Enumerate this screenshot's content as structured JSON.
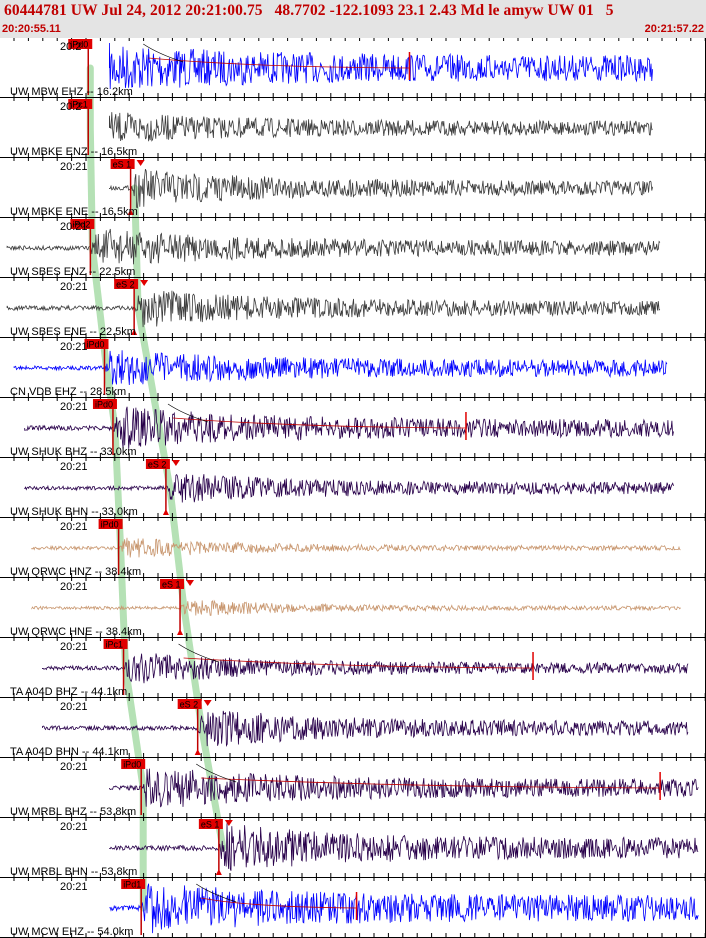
{
  "header": {
    "title": "60444781 UW Jul 24, 2012 20:21:00.75   48.7702 -122.1093 23.1 2.43 Md le amyw UW 01   5",
    "start_time": "20:20:55.11",
    "end_time": "20:21:57.22"
  },
  "panels": [
    {
      "label": "UW MBW EHZ -- 16.2km",
      "tick": "20:2",
      "color": "#0000ff",
      "start": 0.155,
      "end": 0.925,
      "amp": 26,
      "phase": "iPd0",
      "phase_x": 0.125,
      "mark_x": 0.58,
      "decay": 0.45
    },
    {
      "label": "UW MBKE ENZ -- 16.5km",
      "tick": "20:2",
      "color": "#3c3c3c",
      "start": 0.155,
      "end": 0.925,
      "amp": 17,
      "phase": "iPc1",
      "phase_x": 0.125,
      "decay": 0.35
    },
    {
      "label": "UW MBKE ENE -- 16.5km",
      "tick": "20:21",
      "color": "#3c3c3c",
      "start": 0.155,
      "end": 0.925,
      "amp": 20,
      "phase": "eS 1",
      "phase_x": 0.185,
      "decay": 0.3
    },
    {
      "label": "UW SBES ENZ -- 22.5km",
      "tick": "20:21",
      "color": "#3c3c3c",
      "start": 0.01,
      "end": 0.935,
      "amp": 20,
      "phase": "iPd2",
      "phase_x": 0.128,
      "decay": 0.3
    },
    {
      "label": "UW SBES ENE -- 22.5km",
      "tick": "20:21",
      "color": "#3c3c3c",
      "start": 0.01,
      "end": 0.935,
      "amp": 20,
      "phase": "eS 2",
      "phase_x": 0.19,
      "decay": 0.3
    },
    {
      "label": "CN VDB EHZ -- 28.5km",
      "tick": "20:21",
      "color": "#0000ff",
      "start": 0.02,
      "end": 0.945,
      "amp": 18,
      "phase": "iPd0",
      "phase_x": 0.148,
      "decay": 0.4
    },
    {
      "label": "UW SHUK BHZ -- 33.0km",
      "tick": "20:21",
      "color": "#28004a",
      "start": 0.035,
      "end": 0.955,
      "amp": 22,
      "phase": "iPd0",
      "phase_x": 0.16,
      "mark_x": 0.66,
      "decay": 0.35
    },
    {
      "label": "UW SHUK BHN -- 33.0km",
      "tick": "20:21",
      "color": "#28004a",
      "start": 0.035,
      "end": 0.955,
      "amp": 16,
      "phase": "eS 2",
      "phase_x": 0.235,
      "decay": 0.3
    },
    {
      "label": "UW QRWC HNZ -- 38.4km",
      "tick": "20:21",
      "color": "#c8966e",
      "start": 0.045,
      "end": 0.965,
      "amp": 10,
      "phase": "iPd0",
      "phase_x": 0.168,
      "decay": 0.1
    },
    {
      "label": "UW QRWC HNE -- 38.4km",
      "tick": "20:21",
      "color": "#c8966e",
      "start": 0.045,
      "end": 0.965,
      "amp": 8,
      "phase": "eS 1",
      "phase_x": 0.255,
      "decay": 0.1
    },
    {
      "label": "TA A04D BHZ -- 44.1km",
      "tick": "20:21",
      "color": "#28004a",
      "start": 0.06,
      "end": 0.975,
      "amp": 16,
      "phase": "iPc1",
      "phase_x": 0.175,
      "mark_x": 0.755,
      "decay": 0.25
    },
    {
      "label": "TA A04D BHN -- 44.1km",
      "tick": "20:21",
      "color": "#28004a",
      "start": 0.06,
      "end": 0.975,
      "amp": 20,
      "phase": "eS 2",
      "phase_x": 0.28,
      "decay": 0.3
    },
    {
      "label": "UW MRBL BHZ -- 53.8km",
      "tick": "20:21",
      "color": "#28004a",
      "start": 0.155,
      "end": 0.99,
      "amp": 22,
      "phase": "iPd0",
      "phase_x": 0.2,
      "mark_x": 0.935,
      "decay": 0.35
    },
    {
      "label": "UW MRBL BHN -- 53.8km",
      "tick": "20:21",
      "color": "#28004a",
      "start": 0.155,
      "end": 0.99,
      "amp": 26,
      "phase": "eS 1",
      "phase_x": 0.31,
      "decay": 0.35
    },
    {
      "label": "UW MCW EHZ -- 54.0km",
      "tick": "20:21",
      "color": "#0000ff",
      "start": 0.155,
      "end": 0.99,
      "amp": 26,
      "phase": "iPd1",
      "phase_x": 0.2,
      "mark_x": 0.505,
      "decay": 0.45
    }
  ]
}
